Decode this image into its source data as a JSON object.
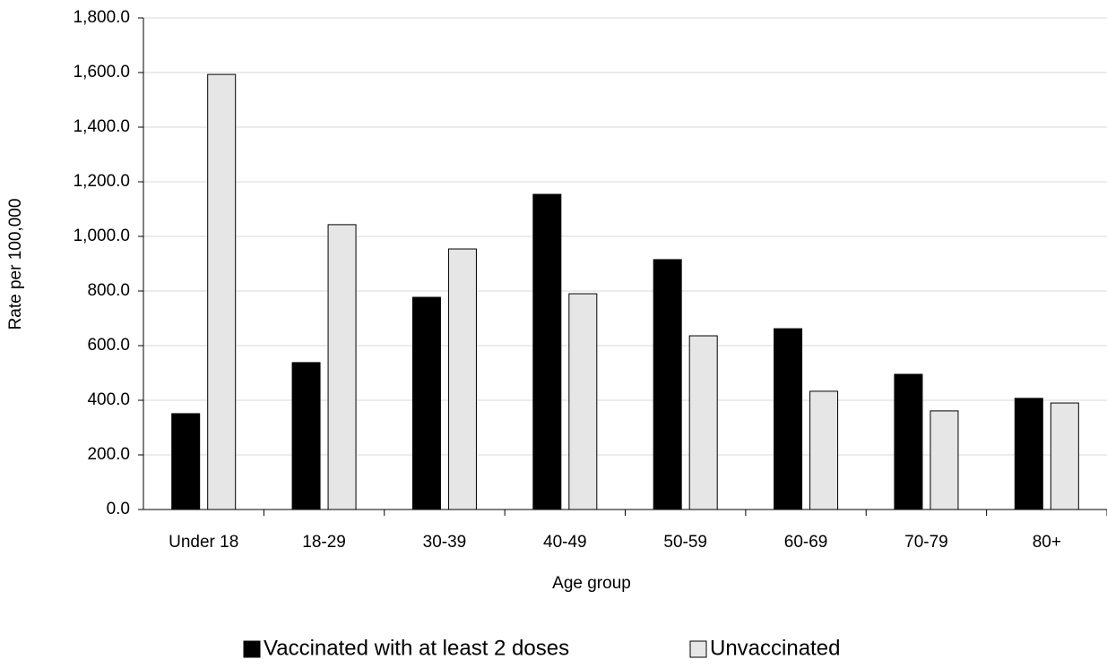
{
  "chart_data": {
    "type": "bar",
    "x_label": "Age group",
    "y_label": "Rate per 100,000",
    "categories": [
      "Under 18",
      "18-29",
      "30-39",
      "40-49",
      "50-59",
      "60-69",
      "70-79",
      "80+"
    ],
    "series": [
      {
        "name": "Vaccinated with at least 2 doses",
        "color": "#000000",
        "values": [
          351,
          538,
          777,
          1154,
          915,
          662,
          495,
          407
        ]
      },
      {
        "name": "Unvaccinated",
        "color": "#e6e6e6",
        "values": [
          1593,
          1043,
          954,
          790,
          636,
          433,
          361,
          390
        ]
      }
    ],
    "ylim": [
      0,
      1800
    ],
    "yticks": [
      {
        "value": 0,
        "label": "0.0"
      },
      {
        "value": 200,
        "label": "200.0"
      },
      {
        "value": 400,
        "label": "400.0"
      },
      {
        "value": 600,
        "label": "600.0"
      },
      {
        "value": 800,
        "label": "800.0"
      },
      {
        "value": 1000,
        "label": "1,000.0"
      },
      {
        "value": 1200,
        "label": "1,200.0"
      },
      {
        "value": 1400,
        "label": "1,400.0"
      },
      {
        "value": 1600,
        "label": "1,600.0"
      },
      {
        "value": 1800,
        "label": "1,800.0"
      }
    ],
    "grid": true,
    "legend": "bottom"
  }
}
